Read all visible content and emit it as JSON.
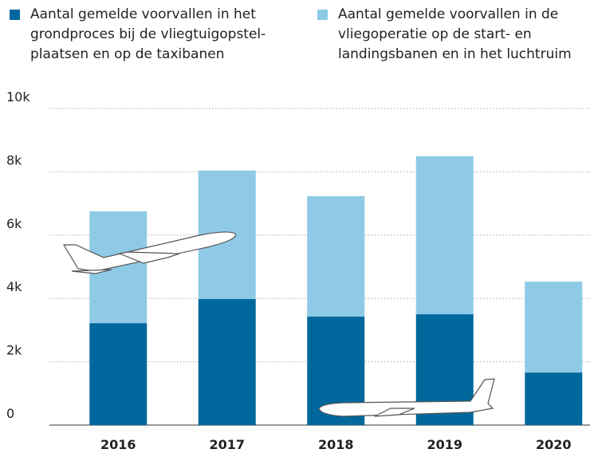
{
  "chart_data": {
    "type": "stacked-bar",
    "categories": [
      "2016",
      "2017",
      "2018",
      "2019",
      "2020"
    ],
    "series": [
      {
        "name": "Aantal gemelde voorvallen in het grondproces bij de vliegtuigopstel­plaatsen en op de taxibanen",
        "color": "#00689d",
        "values": [
          3220,
          3980,
          3430,
          3500,
          1660
        ]
      },
      {
        "name": "Aantal gemelde voorvallen in de vliegoperatie op de start- en landingsbanen en in het luchtruim",
        "color": "#8ecae6",
        "values": [
          3530,
          4060,
          3800,
          4990,
          2870
        ]
      }
    ],
    "ylim": [
      0,
      10000
    ],
    "yticks": [
      0,
      {
        "value": 2000,
        "label": "2k"
      },
      {
        "value": 4000,
        "label": "4k"
      },
      {
        "value": 6000,
        "label": "6k"
      },
      {
        "value": 8000,
        "label": "8k"
      },
      {
        "value": 10000,
        "label": "10k"
      }
    ],
    "grid": true
  }
}
